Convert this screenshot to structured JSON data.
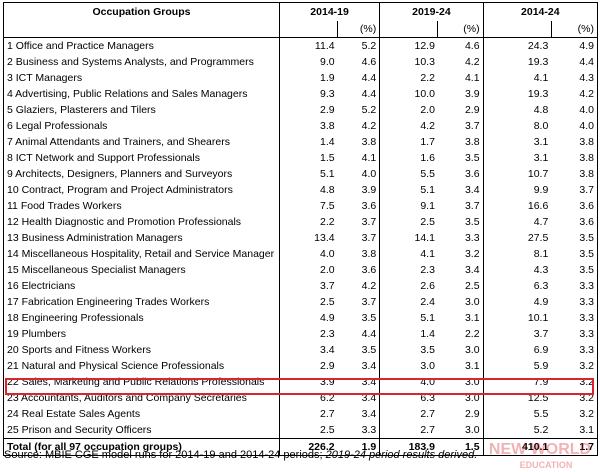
{
  "header": {
    "occupation_groups": "Occupation Groups",
    "period_1": "2014-19",
    "period_2": "2019-24",
    "period_3": "2014-24",
    "pct": "(%)"
  },
  "rows": [
    {
      "name": "1  Office and Practice Managers",
      "v1": "11.4",
      "p1": "5.2",
      "v2": "12.9",
      "p2": "4.6",
      "v3": "24.3",
      "p3": "4.9"
    },
    {
      "name": "2  Business and Systems Analysts, and Programmers",
      "v1": "9.0",
      "p1": "4.6",
      "v2": "10.3",
      "p2": "4.2",
      "v3": "19.3",
      "p3": "4.4"
    },
    {
      "name": "3  ICT Managers",
      "v1": "1.9",
      "p1": "4.4",
      "v2": "2.2",
      "p2": "4.1",
      "v3": "4.1",
      "p3": "4.3"
    },
    {
      "name": "4  Advertising, Public Relations and Sales Managers",
      "v1": "9.3",
      "p1": "4.4",
      "v2": "10.0",
      "p2": "3.9",
      "v3": "19.3",
      "p3": "4.2"
    },
    {
      "name": "5  Glaziers, Plasterers and Tilers",
      "v1": "2.9",
      "p1": "5.2",
      "v2": "2.0",
      "p2": "2.9",
      "v3": "4.8",
      "p3": "4.0"
    },
    {
      "name": "6  Legal Professionals",
      "v1": "3.8",
      "p1": "4.2",
      "v2": "4.2",
      "p2": "3.7",
      "v3": "8.0",
      "p3": "4.0"
    },
    {
      "name": "7  Animal Attendants and Trainers, and Shearers",
      "v1": "1.4",
      "p1": "3.8",
      "v2": "1.7",
      "p2": "3.8",
      "v3": "3.1",
      "p3": "3.8"
    },
    {
      "name": "8  ICT Network and Support Professionals",
      "v1": "1.5",
      "p1": "4.1",
      "v2": "1.6",
      "p2": "3.5",
      "v3": "3.1",
      "p3": "3.8"
    },
    {
      "name": "9  Architects, Designers, Planners and Surveyors",
      "v1": "5.1",
      "p1": "4.0",
      "v2": "5.5",
      "p2": "3.6",
      "v3": "10.7",
      "p3": "3.8"
    },
    {
      "name": "10 Contract, Program and Project Administrators",
      "v1": "4.8",
      "p1": "3.9",
      "v2": "5.1",
      "p2": "3.4",
      "v3": "9.9",
      "p3": "3.7"
    },
    {
      "name": "11 Food Trades Workers",
      "v1": "7.5",
      "p1": "3.6",
      "v2": "9.1",
      "p2": "3.7",
      "v3": "16.6",
      "p3": "3.6"
    },
    {
      "name": "12 Health Diagnostic and Promotion Professionals",
      "v1": "2.2",
      "p1": "3.7",
      "v2": "2.5",
      "p2": "3.5",
      "v3": "4.7",
      "p3": "3.6"
    },
    {
      "name": "13 Business Administration Managers",
      "v1": "13.4",
      "p1": "3.7",
      "v2": "14.1",
      "p2": "3.3",
      "v3": "27.5",
      "p3": "3.5"
    },
    {
      "name": "14 Miscellaneous Hospitality, Retail and Service Manager",
      "v1": "4.0",
      "p1": "3.8",
      "v2": "4.1",
      "p2": "3.2",
      "v3": "8.1",
      "p3": "3.5"
    },
    {
      "name": "15 Miscellaneous Specialist Managers",
      "v1": "2.0",
      "p1": "3.6",
      "v2": "2.3",
      "p2": "3.4",
      "v3": "4.3",
      "p3": "3.5"
    },
    {
      "name": "16 Electricians",
      "v1": "3.7",
      "p1": "4.2",
      "v2": "2.6",
      "p2": "2.5",
      "v3": "6.3",
      "p3": "3.3"
    },
    {
      "name": "17 Fabrication Engineering Trades Workers",
      "v1": "2.5",
      "p1": "3.7",
      "v2": "2.4",
      "p2": "3.0",
      "v3": "4.9",
      "p3": "3.3"
    },
    {
      "name": "18 Engineering Professionals",
      "v1": "4.9",
      "p1": "3.5",
      "v2": "5.1",
      "p2": "3.1",
      "v3": "10.1",
      "p3": "3.3"
    },
    {
      "name": "19 Plumbers",
      "v1": "2.3",
      "p1": "4.4",
      "v2": "1.4",
      "p2": "2.2",
      "v3": "3.7",
      "p3": "3.3"
    },
    {
      "name": "20 Sports and Fitness Workers",
      "v1": "3.4",
      "p1": "3.5",
      "v2": "3.5",
      "p2": "3.0",
      "v3": "6.9",
      "p3": "3.3"
    },
    {
      "name": "21 Natural and Physical Science Professionals",
      "v1": "2.9",
      "p1": "3.4",
      "v2": "3.0",
      "p2": "3.1",
      "v3": "5.9",
      "p3": "3.2"
    },
    {
      "name": "22 Sales, Marketing and Public Relations Professionals",
      "v1": "3.9",
      "p1": "3.4",
      "v2": "4.0",
      "p2": "3.0",
      "v3": "7.9",
      "p3": "3.2"
    },
    {
      "name": "23 Accountants, Auditors and Company Secretaries",
      "v1": "6.2",
      "p1": "3.4",
      "v2": "6.3",
      "p2": "3.0",
      "v3": "12.5",
      "p3": "3.2"
    },
    {
      "name": "24 Real Estate Sales Agents",
      "v1": "2.7",
      "p1": "3.4",
      "v2": "2.7",
      "p2": "2.9",
      "v3": "5.5",
      "p3": "3.2"
    },
    {
      "name": "25 Prison and Security Officers",
      "v1": "2.5",
      "p1": "3.3",
      "v2": "2.7",
      "p2": "3.0",
      "v3": "5.2",
      "p3": "3.1"
    }
  ],
  "total": {
    "name": "Total (for all 97 occupation groups)",
    "v1": "226.2",
    "p1": "1.9",
    "v2": "183.9",
    "p2": "1.5",
    "v3": "410.1",
    "p3": "1.7"
  },
  "source": {
    "text": "Source: MBIE CGE model runs for 2014-19 and 2014-24 periods; ",
    "italic": "2019-24 period results derived."
  },
  "watermark": {
    "text": "NEW WORLD",
    "sub": "EDUCATION",
    "color": "#d9252b"
  }
}
